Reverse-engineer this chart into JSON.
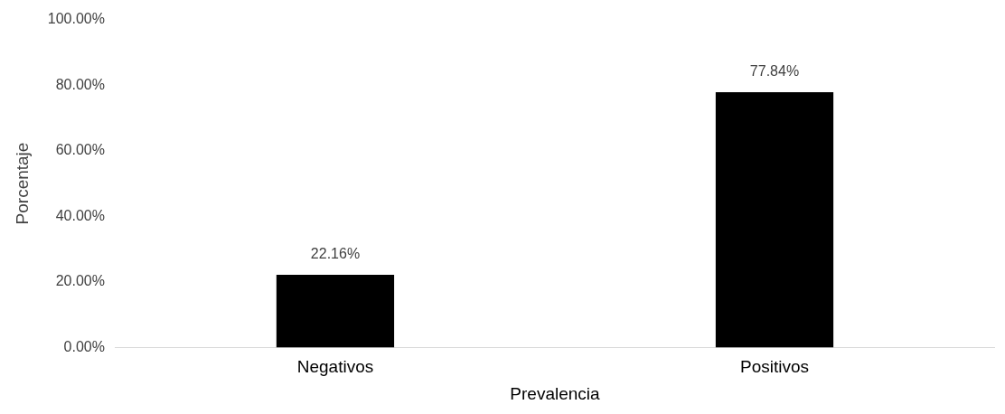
{
  "chart_data": {
    "type": "bar",
    "xlabel": "Prevalencia",
    "ylabel": "Porcentaje",
    "categories": [
      "Negativos",
      "Positivos"
    ],
    "values": [
      22.16,
      77.84
    ],
    "colors": [
      "#000000",
      "#000000"
    ],
    "value_labels": [
      "22.16%",
      "77.84%"
    ],
    "ylim": [
      0,
      100
    ],
    "yticks": [
      {
        "value": 0,
        "label": "0.00%"
      },
      {
        "value": 20,
        "label": "20.00%"
      },
      {
        "value": 40,
        "label": "40.00%"
      },
      {
        "value": 60,
        "label": "60.00%"
      },
      {
        "value": 80,
        "label": "80.00%"
      },
      {
        "value": 100,
        "label": "100.00%"
      }
    ],
    "grid": false,
    "legend": false
  }
}
